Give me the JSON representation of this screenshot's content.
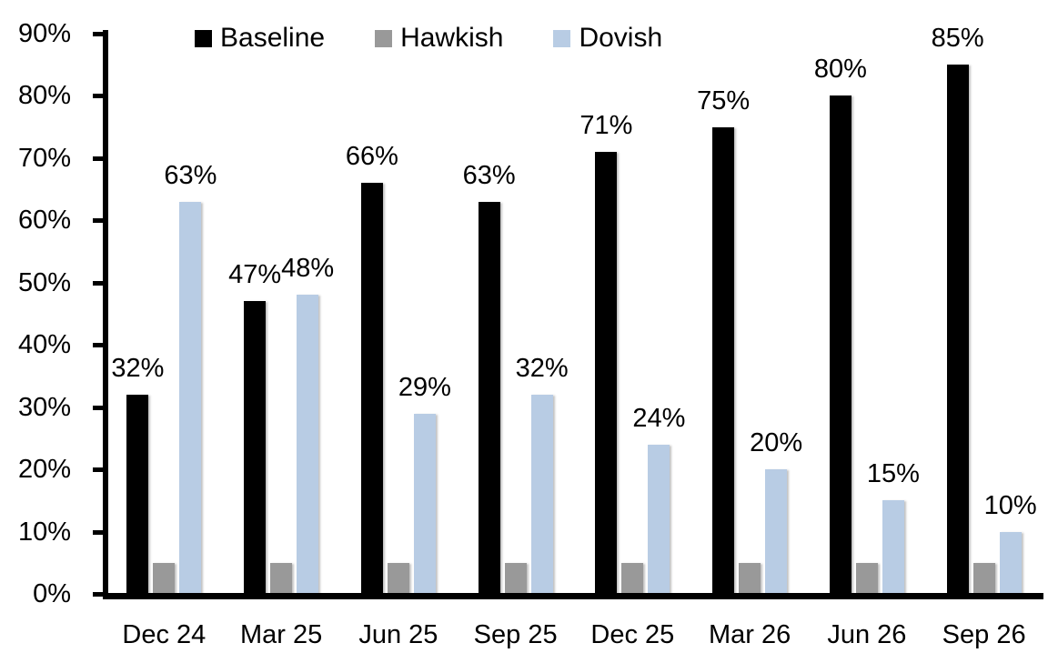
{
  "chart_data": {
    "type": "bar",
    "title": "",
    "categories": [
      "Dec 24",
      "Mar 25",
      "Jun 25",
      "Sep 25",
      "Dec 25",
      "Mar 26",
      "Jun 26",
      "Sep 26"
    ],
    "series": [
      {
        "name": "Baseline",
        "color": "#000000",
        "values": [
          32,
          47,
          66,
          63,
          71,
          75,
          80,
          85
        ],
        "data_labels": [
          "32%",
          "47%",
          "66%",
          "63%",
          "71%",
          "75%",
          "80%",
          "85%"
        ]
      },
      {
        "name": "Hawkish",
        "color": "#999999",
        "values": [
          5,
          5,
          5,
          5,
          5,
          5,
          5,
          5
        ],
        "data_labels": [
          "",
          "",
          "",
          "",
          "",
          "",
          "",
          ""
        ]
      },
      {
        "name": "Dovish",
        "color": "#B8CCE4",
        "values": [
          63,
          48,
          29,
          32,
          24,
          20,
          15,
          10
        ],
        "data_labels": [
          "63%",
          "48%",
          "29%",
          "32%",
          "24%",
          "20%",
          "15%",
          "10%"
        ]
      }
    ],
    "y_axis": {
      "min": 0,
      "max": 90,
      "tick_step": 10,
      "tick_labels": [
        "0%",
        "10%",
        "20%",
        "30%",
        "40%",
        "50%",
        "60%",
        "70%",
        "80%",
        "90%"
      ]
    },
    "legend": {
      "position": "top",
      "entries": [
        "Baseline",
        "Hawkish",
        "Dovish"
      ]
    },
    "grid": false,
    "axis_color": "#000000",
    "background_color": "#ffffff"
  }
}
